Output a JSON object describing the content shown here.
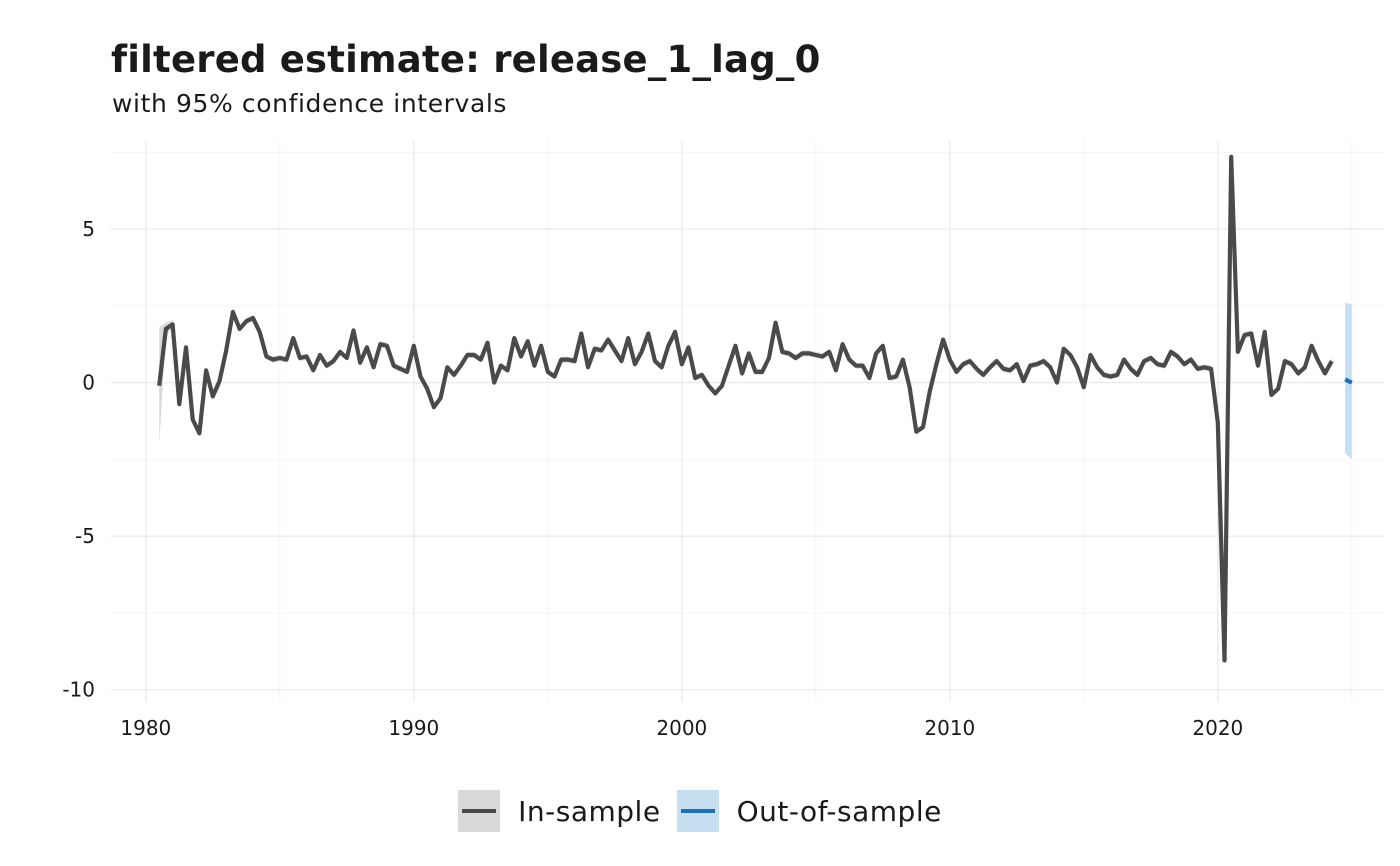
{
  "chart_data": {
    "type": "line",
    "title": "filtered estimate: release_1_lag_0",
    "subtitle": "with 95% confidence intervals",
    "xlabel": "",
    "ylabel": "",
    "xlim": [
      1978.7,
      2026.2
    ],
    "ylim": [
      -10.4,
      7.9
    ],
    "x_ticks": [
      1980,
      1990,
      2000,
      2010,
      2020
    ],
    "x_tick_labels": [
      "1980",
      "1990",
      "2000",
      "2010",
      "2020"
    ],
    "y_ticks": [
      5,
      0,
      -5,
      -10
    ],
    "y_tick_labels": [
      "5",
      "0",
      "-5",
      "-10"
    ],
    "grid": true,
    "legend_position": "bottom",
    "colors": {
      "in_sample_line": "#4a4a4a",
      "in_sample_band": "#d9d9d9",
      "out_sample_line": "#1f6fb4",
      "out_sample_band": "#c6dff0",
      "grid_major": "#ebebeb",
      "grid_minor": "#f4f4f4"
    },
    "series": [
      {
        "name": "In-sample",
        "x": [
          1980.5,
          1980.75,
          1981.0,
          1981.25,
          1981.5,
          1981.75,
          1982.0,
          1982.25,
          1982.5,
          1982.75,
          1983.0,
          1983.25,
          1983.5,
          1983.75,
          1984.0,
          1984.25,
          1984.5,
          1984.75,
          1985.0,
          1985.25,
          1985.5,
          1985.75,
          1986.0,
          1986.25,
          1986.5,
          1986.75,
          1987.0,
          1987.25,
          1987.5,
          1987.75,
          1988.0,
          1988.25,
          1988.5,
          1988.75,
          1989.0,
          1989.25,
          1989.5,
          1989.75,
          1990.0,
          1990.25,
          1990.5,
          1990.75,
          1991.0,
          1991.25,
          1991.5,
          1991.75,
          1992.0,
          1992.25,
          1992.5,
          1992.75,
          1993.0,
          1993.25,
          1993.5,
          1993.75,
          1994.0,
          1994.25,
          1994.5,
          1994.75,
          1995.0,
          1995.25,
          1995.5,
          1995.75,
          1996.0,
          1996.25,
          1996.5,
          1996.75,
          1997.0,
          1997.25,
          1997.5,
          1997.75,
          1998.0,
          1998.25,
          1998.5,
          1998.75,
          1999.0,
          1999.25,
          1999.5,
          1999.75,
          2000.0,
          2000.25,
          2000.5,
          2000.75,
          2001.0,
          2001.25,
          2001.5,
          2001.75,
          2002.0,
          2002.25,
          2002.5,
          2002.75,
          2003.0,
          2003.25,
          2003.5,
          2003.75,
          2004.0,
          2004.25,
          2004.5,
          2004.75,
          2005.0,
          2005.25,
          2005.5,
          2005.75,
          2006.0,
          2006.25,
          2006.5,
          2006.75,
          2007.0,
          2007.25,
          2007.5,
          2007.75,
          2008.0,
          2008.25,
          2008.5,
          2008.75,
          2009.0,
          2009.25,
          2009.5,
          2009.75,
          2010.0,
          2010.25,
          2010.5,
          2010.75,
          2011.0,
          2011.25,
          2011.5,
          2011.75,
          2012.0,
          2012.25,
          2012.5,
          2012.75,
          2013.0,
          2013.25,
          2013.5,
          2013.75,
          2014.0,
          2014.25,
          2014.5,
          2014.75,
          2015.0,
          2015.25,
          2015.5,
          2015.75,
          2016.0,
          2016.25,
          2016.5,
          2016.75,
          2017.0,
          2017.25,
          2017.5,
          2017.75,
          2018.0,
          2018.25,
          2018.5,
          2018.75,
          2019.0,
          2019.25,
          2019.5,
          2019.75,
          2020.0,
          2020.25,
          2020.5,
          2020.75,
          2021.0,
          2021.25,
          2021.5,
          2021.75,
          2022.0,
          2022.25,
          2022.5,
          2022.75,
          2023.0,
          2023.25,
          2023.5,
          2023.75,
          2024.0,
          2024.25
        ],
        "y": [
          -0.1,
          1.75,
          1.9,
          -0.7,
          1.15,
          -1.2,
          -1.65,
          0.4,
          -0.45,
          0.05,
          1.05,
          2.3,
          1.75,
          2.0,
          2.1,
          1.65,
          0.85,
          0.75,
          0.8,
          0.75,
          1.45,
          0.8,
          0.85,
          0.4,
          0.9,
          0.55,
          0.7,
          1.0,
          0.8,
          1.7,
          0.65,
          1.15,
          0.5,
          1.25,
          1.2,
          0.55,
          0.45,
          0.35,
          1.2,
          0.2,
          -0.2,
          -0.8,
          -0.5,
          0.5,
          0.25,
          0.55,
          0.9,
          0.9,
          0.75,
          1.3,
          0.0,
          0.55,
          0.4,
          1.45,
          0.85,
          1.35,
          0.55,
          1.2,
          0.35,
          0.2,
          0.75,
          0.75,
          0.7,
          1.6,
          0.5,
          1.1,
          1.05,
          1.4,
          1.05,
          0.7,
          1.45,
          0.6,
          1.0,
          1.6,
          0.7,
          0.5,
          1.2,
          1.65,
          0.6,
          1.15,
          0.15,
          0.25,
          -0.1,
          -0.35,
          -0.1,
          0.55,
          1.2,
          0.3,
          0.95,
          0.35,
          0.35,
          0.8,
          1.95,
          1.0,
          0.95,
          0.8,
          0.95,
          0.95,
          0.9,
          0.85,
          1.0,
          0.4,
          1.25,
          0.75,
          0.55,
          0.55,
          0.15,
          0.95,
          1.2,
          0.15,
          0.2,
          0.75,
          -0.15,
          -1.6,
          -1.45,
          -0.3,
          0.6,
          1.4,
          0.75,
          0.35,
          0.6,
          0.7,
          0.45,
          0.25,
          0.5,
          0.7,
          0.45,
          0.4,
          0.6,
          0.05,
          0.55,
          0.6,
          0.7,
          0.5,
          0.0,
          1.1,
          0.9,
          0.5,
          -0.15,
          0.9,
          0.5,
          0.25,
          0.2,
          0.25,
          0.75,
          0.45,
          0.25,
          0.7,
          0.8,
          0.6,
          0.55,
          1.0,
          0.85,
          0.6,
          0.75,
          0.45,
          0.5,
          0.45,
          -1.3,
          -9.05,
          7.35,
          1.0,
          1.55,
          1.6,
          0.55,
          1.65,
          -0.4,
          -0.2,
          0.7,
          0.6,
          0.3,
          0.5,
          1.2,
          0.7,
          0.3,
          0.7
        ],
        "band_halfwidth": [
          1.9,
          0.2,
          0.15,
          0.12,
          0.1,
          0.1,
          0.1,
          0.1,
          0.1,
          0.1,
          0.1,
          0.1,
          0.1,
          0.1,
          0.1,
          0.1,
          0.1,
          0.1,
          0.1,
          0.1,
          0.1,
          0.1,
          0.1,
          0.1,
          0.1,
          0.1,
          0.1,
          0.1,
          0.1,
          0.1,
          0.1,
          0.1,
          0.1,
          0.1,
          0.1,
          0.1,
          0.1,
          0.1,
          0.1,
          0.1,
          0.1,
          0.1,
          0.1,
          0.1,
          0.1,
          0.1,
          0.1,
          0.1,
          0.1,
          0.1,
          0.1,
          0.1,
          0.1,
          0.1,
          0.1,
          0.1,
          0.1,
          0.1,
          0.1,
          0.1,
          0.1,
          0.1,
          0.1,
          0.1,
          0.1,
          0.1,
          0.1,
          0.1,
          0.1,
          0.1,
          0.1,
          0.1,
          0.1,
          0.1,
          0.1,
          0.1,
          0.1,
          0.1,
          0.1,
          0.1,
          0.1,
          0.1,
          0.1,
          0.1,
          0.1,
          0.1,
          0.1,
          0.1,
          0.1,
          0.1,
          0.1,
          0.1,
          0.1,
          0.1,
          0.1,
          0.1,
          0.1,
          0.1,
          0.1,
          0.1,
          0.1,
          0.1,
          0.1,
          0.1,
          0.1,
          0.1,
          0.1,
          0.1,
          0.1,
          0.1,
          0.1,
          0.1,
          0.1,
          0.1,
          0.1,
          0.1,
          0.1,
          0.1,
          0.1,
          0.1,
          0.1,
          0.1,
          0.1,
          0.1,
          0.1,
          0.1,
          0.1,
          0.1,
          0.1,
          0.1,
          0.1,
          0.1,
          0.1,
          0.1,
          0.1,
          0.1,
          0.1,
          0.1,
          0.1,
          0.1,
          0.1,
          0.1,
          0.1,
          0.1,
          0.1,
          0.1,
          0.1,
          0.1,
          0.1,
          0.1,
          0.1,
          0.1,
          0.1,
          0.1,
          0.1,
          0.1,
          0.1,
          0.1,
          0.1,
          0.1,
          0.1,
          0.1,
          0.1,
          0.1,
          0.1,
          0.1,
          0.1,
          0.1,
          0.1,
          0.1,
          0.1,
          0.1,
          0.1,
          0.1,
          0.1,
          0.1,
          0.1,
          0.1,
          0.1,
          0.1
        ]
      },
      {
        "name": "Out-of-sample",
        "x": [
          2024.75,
          2025.0
        ],
        "y": [
          0.1,
          0.0
        ],
        "lower": [
          -2.3,
          -2.5
        ],
        "upper": [
          2.6,
          2.55
        ]
      }
    ]
  },
  "legend": {
    "items": [
      {
        "label": "In-sample"
      },
      {
        "label": "Out-of-sample"
      }
    ]
  }
}
